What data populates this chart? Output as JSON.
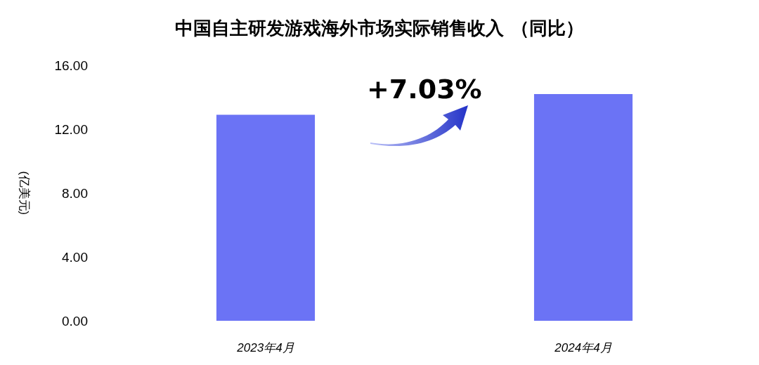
{
  "chart_data": {
    "type": "bar",
    "title": "中国自主研发游戏海外市场实际销售收入 （同比）",
    "ylabel": "(亿美元)",
    "categories": [
      "2023年4月",
      "2024年4月"
    ],
    "values": [
      12.9,
      14.2
    ],
    "color": "#6b73f5",
    "ylim": [
      0,
      16
    ],
    "yticks": [
      {
        "value": 0,
        "label": "0.00"
      },
      {
        "value": 4,
        "label": "4.00"
      },
      {
        "value": 8,
        "label": "8.00"
      },
      {
        "value": 12,
        "label": "12.00"
      },
      {
        "value": 16,
        "label": "16.00"
      }
    ],
    "grid": false,
    "annotations": [
      "+7.03%"
    ]
  }
}
